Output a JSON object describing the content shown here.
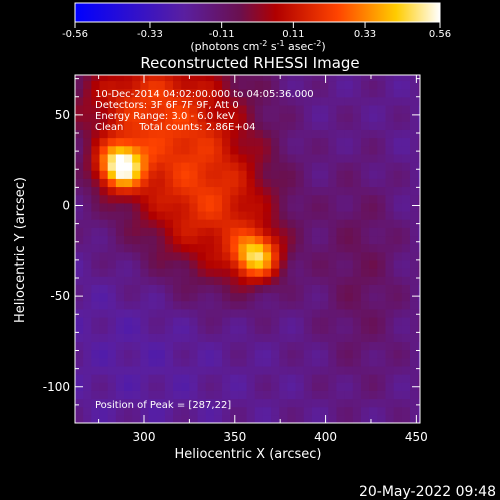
{
  "chart_data": {
    "type": "heatmap",
    "title": "Reconstructed RHESSI Image",
    "xlabel": "Heliocentric X (arcsec)",
    "ylabel": "Heliocentric Y (arcsec)",
    "xlim": [
      262,
      452
    ],
    "ylim": [
      -120,
      72
    ],
    "x_ticks": [
      300,
      350,
      400,
      450
    ],
    "y_ticks": [
      50,
      0,
      -50,
      -100
    ],
    "colorbar": {
      "ticks": [
        -0.56,
        -0.33,
        -0.11,
        0.11,
        0.33,
        0.56
      ],
      "tick_labels": [
        "-0.56",
        "-0.33",
        "-0.11",
        "0.11",
        "0.33",
        "0.56"
      ],
      "range": [
        -0.56,
        0.56
      ],
      "unit_text": "(photons cm",
      "unit_sup1": "-2",
      "unit_mid": " s",
      "unit_sup2": "-1",
      "unit_mid2": " asec",
      "unit_sup3": "-2",
      "unit_end": ")"
    },
    "info_lines": [
      "10-Dec-2014 04:02:00.000 to 04:05:36.000",
      "Detectors: 3F 6F 7F 9F, Att 0",
      "Energy Range: 3.0 - 6.0 keV",
      "Clean     Total counts: 2.86E+04"
    ],
    "peak_label": "Position of Peak = [287,22]",
    "peaks": [
      {
        "x": 287,
        "y": 22,
        "value": 0.56
      },
      {
        "x": 362,
        "y": -28,
        "value": 0.45
      },
      {
        "x": 325,
        "y": 48,
        "value": 0.25
      }
    ],
    "colors": {
      "min": "#0000ff",
      "mid_low": "#4b1a80",
      "mid": "#8b0a0a",
      "high": "#ff6600",
      "max": "#ffffff"
    }
  },
  "timestamp": "20-May-2022 09:48"
}
